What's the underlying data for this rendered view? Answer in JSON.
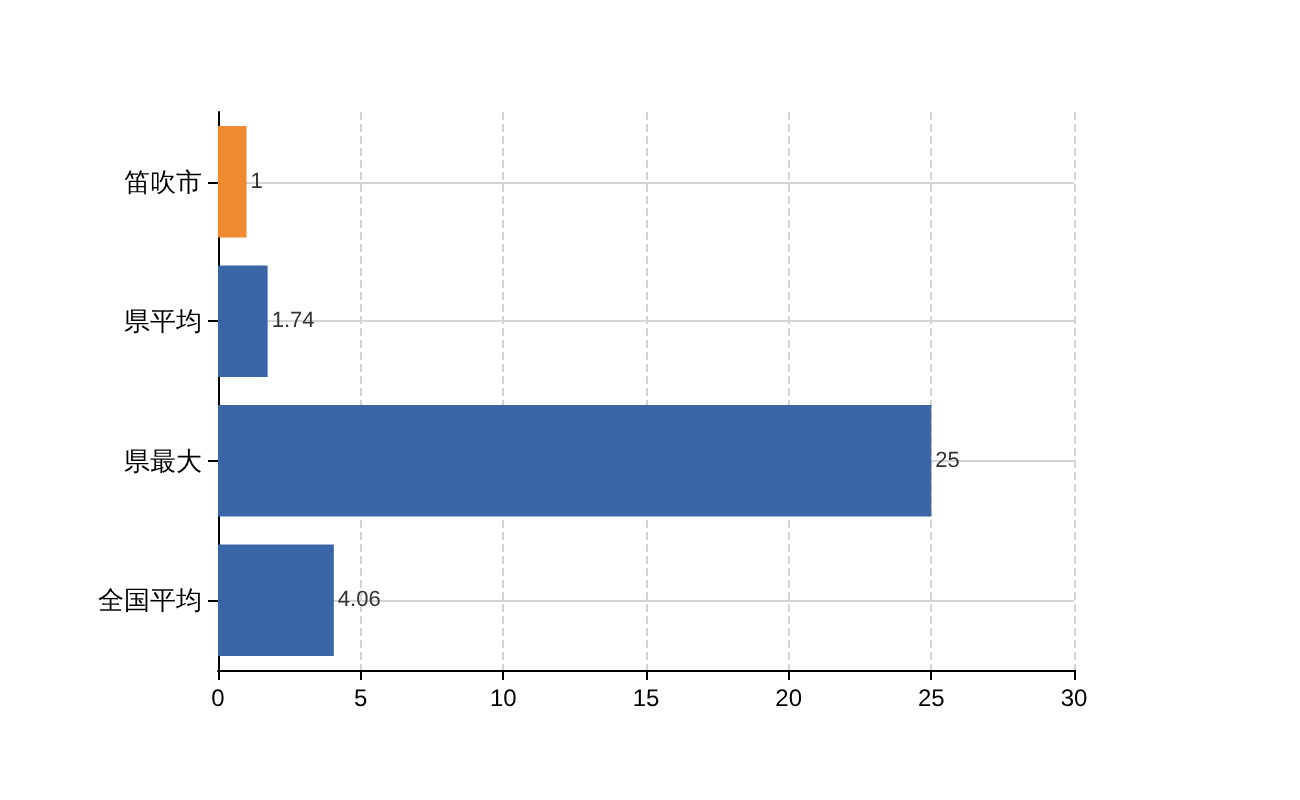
{
  "chart_data": {
    "type": "bar",
    "orientation": "horizontal",
    "categories": [
      "笛吹市",
      "県平均",
      "県最大",
      "全国平均"
    ],
    "values": [
      1,
      1.74,
      25,
      4.06
    ],
    "colors": [
      "#f08a30",
      "#3a66a8",
      "#3a66a8",
      "#3a66a8"
    ],
    "xlim": [
      0,
      30
    ],
    "xticks": [
      0,
      5,
      10,
      15,
      20,
      25,
      30
    ],
    "grid": true,
    "data_labels": true
  }
}
